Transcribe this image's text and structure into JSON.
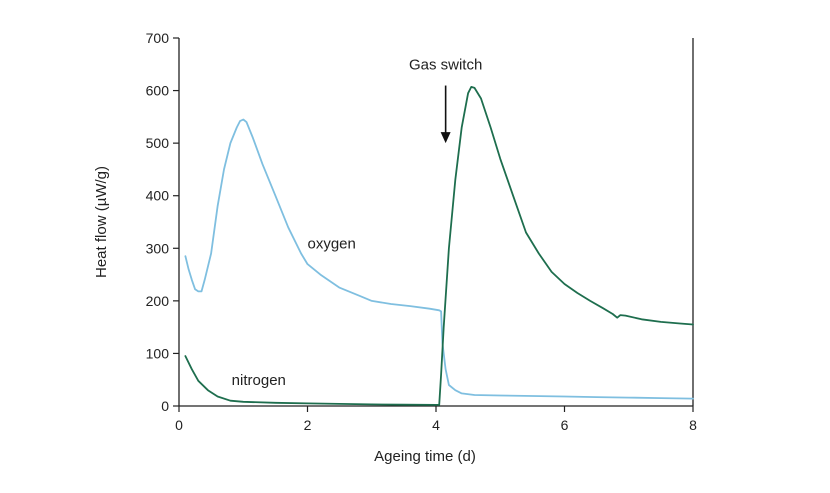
{
  "chart_data": {
    "type": "line",
    "title": "",
    "xlabel": "Ageing time (d)",
    "ylabel": "Heat flow (µW/g)",
    "xlim": [
      0,
      8
    ],
    "ylim": [
      0,
      700
    ],
    "xticks": [
      0,
      2,
      4,
      6,
      8
    ],
    "yticks": [
      0,
      100,
      200,
      300,
      400,
      500,
      600,
      700
    ],
    "grid": false,
    "series": [
      {
        "name": "oxygen",
        "color": "#7fbfe0",
        "points": [
          [
            0.1,
            285
          ],
          [
            0.15,
            260
          ],
          [
            0.2,
            240
          ],
          [
            0.25,
            222
          ],
          [
            0.3,
            218
          ],
          [
            0.35,
            218
          ],
          [
            0.4,
            240
          ],
          [
            0.5,
            290
          ],
          [
            0.6,
            380
          ],
          [
            0.7,
            450
          ],
          [
            0.8,
            500
          ],
          [
            0.9,
            530
          ],
          [
            0.95,
            542
          ],
          [
            1.0,
            545
          ],
          [
            1.05,
            540
          ],
          [
            1.15,
            510
          ],
          [
            1.3,
            460
          ],
          [
            1.5,
            400
          ],
          [
            1.7,
            340
          ],
          [
            1.9,
            290
          ],
          [
            2.0,
            270
          ],
          [
            2.2,
            250
          ],
          [
            2.5,
            225
          ],
          [
            2.8,
            210
          ],
          [
            3.0,
            200
          ],
          [
            3.3,
            194
          ],
          [
            3.6,
            190
          ],
          [
            3.9,
            185
          ],
          [
            4.05,
            182
          ],
          [
            4.08,
            180
          ],
          [
            4.1,
            120
          ],
          [
            4.15,
            70
          ],
          [
            4.2,
            40
          ],
          [
            4.3,
            30
          ],
          [
            4.4,
            24
          ],
          [
            4.6,
            21
          ],
          [
            5.0,
            20
          ],
          [
            5.5,
            19
          ],
          [
            6.0,
            18
          ],
          [
            6.5,
            17
          ],
          [
            7.0,
            16
          ],
          [
            7.5,
            15
          ],
          [
            8.0,
            14
          ]
        ]
      },
      {
        "name": "nitrogen",
        "color": "#1e6e4e",
        "points": [
          [
            0.1,
            95
          ],
          [
            0.2,
            70
          ],
          [
            0.3,
            48
          ],
          [
            0.45,
            30
          ],
          [
            0.6,
            18
          ],
          [
            0.8,
            10
          ],
          [
            1.0,
            8
          ],
          [
            1.5,
            6
          ],
          [
            2.0,
            5
          ],
          [
            2.5,
            4
          ],
          [
            3.0,
            3
          ],
          [
            3.5,
            2.5
          ],
          [
            4.0,
            2
          ],
          [
            4.05,
            2
          ],
          [
            4.08,
            60
          ],
          [
            4.12,
            150
          ],
          [
            4.2,
            300
          ],
          [
            4.3,
            430
          ],
          [
            4.4,
            530
          ],
          [
            4.5,
            595
          ],
          [
            4.55,
            607
          ],
          [
            4.6,
            605
          ],
          [
            4.7,
            585
          ],
          [
            4.85,
            530
          ],
          [
            5.0,
            470
          ],
          [
            5.2,
            400
          ],
          [
            5.4,
            330
          ],
          [
            5.6,
            290
          ],
          [
            5.8,
            255
          ],
          [
            6.0,
            232
          ],
          [
            6.2,
            215
          ],
          [
            6.4,
            200
          ],
          [
            6.6,
            186
          ],
          [
            6.75,
            175
          ],
          [
            6.82,
            168
          ],
          [
            6.87,
            173
          ],
          [
            6.95,
            172
          ],
          [
            7.2,
            165
          ],
          [
            7.5,
            160
          ],
          [
            7.8,
            157
          ],
          [
            8.0,
            155
          ]
        ]
      }
    ],
    "annotations": [
      {
        "text": "oxygen",
        "x": 2.0,
        "y": 300
      },
      {
        "text": "nitrogen",
        "x": 0.82,
        "y": 40
      },
      {
        "text": "Gas switch",
        "x": 4.15,
        "y": 640,
        "arrow_to": [
          4.15,
          500
        ]
      }
    ]
  }
}
